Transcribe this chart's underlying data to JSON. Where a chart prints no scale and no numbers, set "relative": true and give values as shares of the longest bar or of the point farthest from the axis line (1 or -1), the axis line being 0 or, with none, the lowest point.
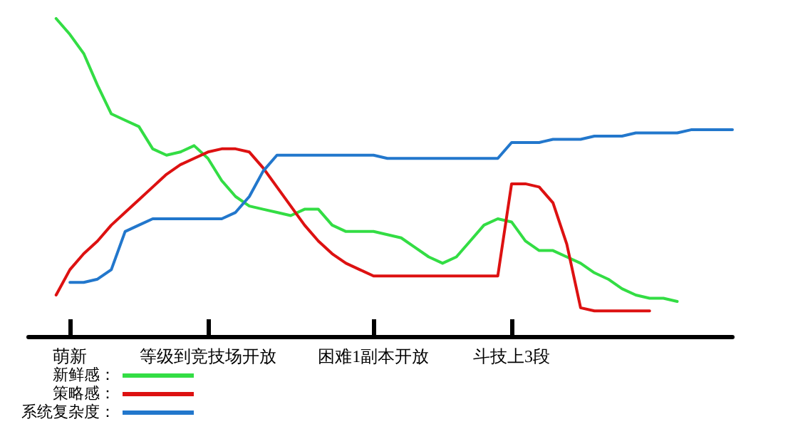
{
  "chart_data": {
    "type": "line",
    "relative": true,
    "legend": "bottom left",
    "grid": false,
    "categories": [
      null,
      null,
      null,
      "萌新",
      null,
      null,
      null,
      null,
      null,
      null,
      null,
      null,
      null,
      "等级到竞技场开放",
      null,
      null,
      null,
      null,
      null,
      null,
      null,
      null,
      null,
      null,
      null,
      "困难1副本开放",
      null,
      null,
      null,
      null,
      null,
      null,
      null,
      null,
      null,
      "斗技上3段",
      null,
      null,
      null,
      null,
      null,
      null,
      null,
      null,
      null,
      null,
      null,
      null,
      null,
      null,
      null,
      null
    ],
    "series": [
      {
        "name": "新鲜感：",
        "color": "#33dd44",
        "values": [
          null,
          null,
          1.0,
          0.95,
          0.89,
          0.79,
          0.7,
          0.68,
          0.66,
          0.59,
          0.57,
          0.58,
          0.6,
          0.56,
          0.49,
          0.44,
          0.41,
          0.4,
          0.39,
          0.38,
          0.4,
          0.4,
          0.35,
          0.33,
          0.33,
          0.33,
          0.32,
          0.31,
          0.28,
          0.25,
          0.23,
          0.25,
          0.3,
          0.35,
          0.37,
          0.36,
          0.3,
          0.27,
          0.27,
          0.25,
          0.23,
          0.2,
          0.18,
          0.15,
          0.13,
          0.12,
          0.12,
          0.11,
          null,
          null,
          null,
          null
        ]
      },
      {
        "name": "策略感：",
        "color": "#dd1111",
        "values": [
          null,
          null,
          0.13,
          0.21,
          0.26,
          0.3,
          0.35,
          0.39,
          0.43,
          0.47,
          0.51,
          0.54,
          0.56,
          0.58,
          0.59,
          0.59,
          0.58,
          0.53,
          0.47,
          0.41,
          0.35,
          0.3,
          0.26,
          0.23,
          0.21,
          0.19,
          0.19,
          0.19,
          0.19,
          0.19,
          0.19,
          0.19,
          0.19,
          0.19,
          0.19,
          0.48,
          0.48,
          0.47,
          0.42,
          0.29,
          0.09,
          0.08,
          0.08,
          0.08,
          0.08,
          0.08,
          null,
          null,
          null,
          null,
          null,
          null
        ]
      },
      {
        "name": "系统复杂度：",
        "color": "#2277cc",
        "values": [
          null,
          null,
          null,
          0.17,
          0.17,
          0.18,
          0.21,
          0.33,
          0.35,
          0.37,
          0.37,
          0.37,
          0.37,
          0.37,
          0.37,
          0.39,
          0.44,
          0.52,
          0.57,
          0.57,
          0.57,
          0.57,
          0.57,
          0.57,
          0.57,
          0.57,
          0.56,
          0.56,
          0.56,
          0.56,
          0.56,
          0.56,
          0.56,
          0.56,
          0.56,
          0.61,
          0.61,
          0.61,
          0.62,
          0.62,
          0.62,
          0.63,
          0.63,
          0.63,
          0.64,
          0.64,
          0.64,
          0.64,
          0.65,
          0.65,
          0.65,
          0.65
        ]
      }
    ]
  }
}
